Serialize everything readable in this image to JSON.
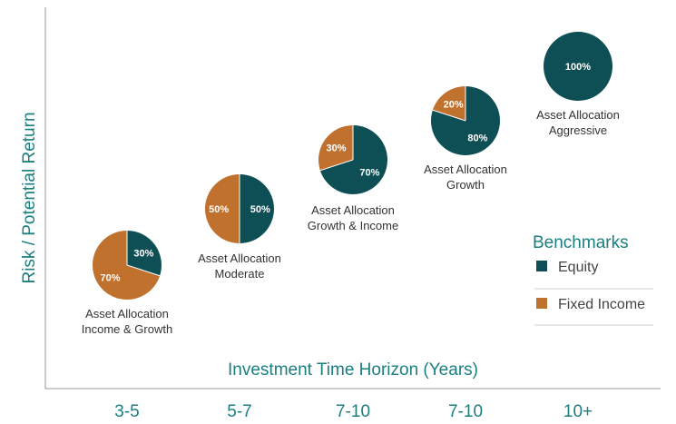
{
  "colors": {
    "equity": "#0e4f55",
    "fixed_income": "#c0712e",
    "axis": "#999999",
    "accent": "#1b7f7f"
  },
  "chart_data": {
    "type": "scatter",
    "xlabel": "Investment Time Horizon (Years)",
    "ylabel": "Risk / Potential Return",
    "categories": [
      "3-5",
      "5-7",
      "7-10",
      "7-10",
      "10+"
    ],
    "legend": {
      "title": "Benchmarks",
      "placement": "right",
      "items": [
        {
          "name": "Equity",
          "color": "#0e4f55"
        },
        {
          "name": "Fixed Income",
          "color": "#c0712e"
        }
      ]
    },
    "points": [
      {
        "category": "3-5",
        "equity": 30,
        "fixed_income": 70,
        "caption": [
          "Asset Allocation",
          "Income & Growth"
        ]
      },
      {
        "category": "5-7",
        "equity": 50,
        "fixed_income": 50,
        "caption": [
          "Asset Allocation",
          "Moderate"
        ]
      },
      {
        "category": "7-10",
        "equity": 70,
        "fixed_income": 30,
        "caption": [
          "Asset Allocation",
          "Growth & Income"
        ]
      },
      {
        "category": "7-10",
        "equity": 80,
        "fixed_income": 20,
        "caption": [
          "Asset Allocation",
          "Growth"
        ]
      },
      {
        "category": "10+",
        "equity": 100,
        "fixed_income": 0,
        "caption": [
          "Asset Allocation",
          "Aggressive"
        ]
      }
    ]
  }
}
